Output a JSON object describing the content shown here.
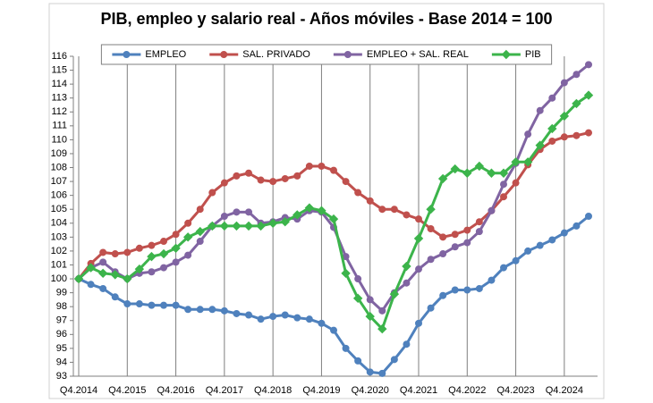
{
  "chart_data": {
    "type": "line",
    "title": "PIB, empleo y salario real - Años móviles - Base 2014 = 100",
    "categories": [
      "Q4.2014",
      null,
      null,
      null,
      "Q4.2015",
      null,
      null,
      null,
      "Q4.2016",
      null,
      null,
      null,
      "Q4.2017",
      null,
      null,
      null,
      "Q4.2018",
      null,
      null,
      null,
      "Q4.2019",
      null,
      null,
      null,
      "Q4.2020",
      null,
      null,
      null,
      "Q4.2021",
      null,
      null,
      null,
      "Q4.2022",
      null,
      null,
      null,
      "Q4.2023",
      null,
      null,
      null,
      "Q4.2024",
      null,
      null
    ],
    "series": [
      {
        "name": "EMPLEO",
        "color": "#4f81bd",
        "marker": "circle",
        "values": [
          100,
          99.6,
          99.3,
          98.7,
          98.2,
          98.2,
          98.1,
          98.1,
          98.1,
          97.8,
          97.8,
          97.8,
          97.7,
          97.5,
          97.4,
          97.1,
          97.3,
          97.4,
          97.2,
          97.1,
          96.8,
          96.3,
          95.0,
          94.1,
          93.3,
          93.2,
          94.2,
          95.3,
          96.8,
          97.9,
          98.8,
          99.2,
          99.2,
          99.3,
          99.9,
          100.8,
          101.3,
          102.0,
          102.4,
          102.8,
          103.3,
          103.8,
          104.5
        ]
      },
      {
        "name": "SAL. PRIVADO",
        "color": "#c0504d",
        "marker": "circle",
        "values": [
          100,
          101.1,
          101.9,
          101.8,
          101.9,
          102.2,
          102.4,
          102.7,
          103.2,
          104.0,
          105.0,
          106.2,
          106.9,
          107.4,
          107.6,
          107.1,
          107.0,
          107.2,
          107.4,
          108.1,
          108.1,
          107.8,
          107.0,
          106.2,
          105.6,
          105.0,
          105.0,
          104.6,
          104.3,
          103.6,
          103.0,
          103.2,
          103.5,
          104.1,
          104.9,
          105.9,
          106.9,
          108.2,
          109.3,
          109.9,
          110.2,
          110.3,
          110.5
        ]
      },
      {
        "name": "EMPLEO + SAL. REAL",
        "color": "#8064a2",
        "marker": "circle",
        "values": [
          100,
          100.8,
          101.2,
          100.5,
          100.0,
          100.4,
          100.5,
          100.8,
          101.2,
          101.7,
          102.7,
          103.8,
          104.5,
          104.8,
          104.8,
          104.0,
          104.1,
          104.4,
          104.3,
          104.9,
          104.8,
          103.7,
          101.6,
          100.0,
          98.5,
          97.7,
          99.0,
          99.7,
          100.7,
          101.4,
          101.8,
          102.3,
          102.6,
          103.4,
          104.9,
          106.8,
          108.3,
          110.4,
          112.1,
          113.0,
          114.1,
          114.7,
          115.4
        ]
      },
      {
        "name": "PIB",
        "color": "#3cb44b",
        "marker": "diamond",
        "values": [
          100,
          100.8,
          100.4,
          100.3,
          100.0,
          100.7,
          101.6,
          101.8,
          102.2,
          103.0,
          103.4,
          103.8,
          103.8,
          103.8,
          103.8,
          103.8,
          104.0,
          104.1,
          104.6,
          105.1,
          104.9,
          104.3,
          100.4,
          98.6,
          97.3,
          96.4,
          98.9,
          100.9,
          102.9,
          105.0,
          107.2,
          107.9,
          107.6,
          108.1,
          107.6,
          107.6,
          108.4,
          108.4,
          109.6,
          110.8,
          111.7,
          112.6,
          113.2
        ]
      }
    ],
    "ylim": [
      93,
      116
    ],
    "yticks": [
      93,
      94,
      95,
      96,
      97,
      98,
      99,
      100,
      101,
      102,
      103,
      104,
      105,
      106,
      107,
      108,
      109,
      110,
      111,
      112,
      113,
      114,
      115,
      116
    ],
    "grid": "x",
    "legend": "top"
  }
}
